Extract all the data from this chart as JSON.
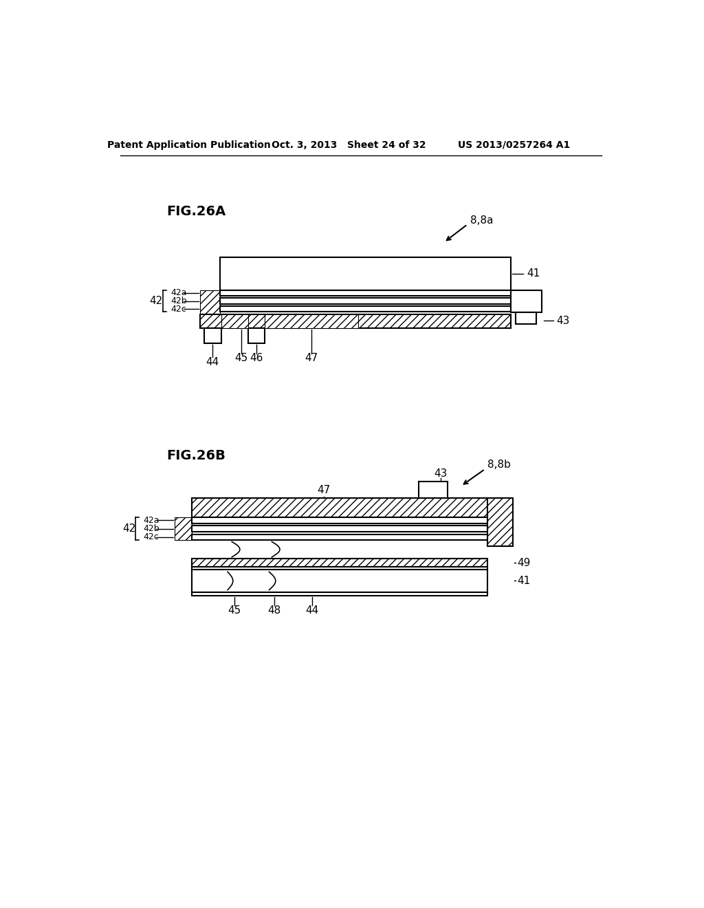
{
  "background_color": "#ffffff",
  "header_left": "Patent Application Publication",
  "header_mid": "Oct. 3, 2013   Sheet 24 of 32",
  "header_right": "US 2013/0257264 A1",
  "fig26a_label": "FIG.26A",
  "fig26b_label": "FIG.26B",
  "label_88a": "8,8a",
  "label_88b": "8,8b"
}
